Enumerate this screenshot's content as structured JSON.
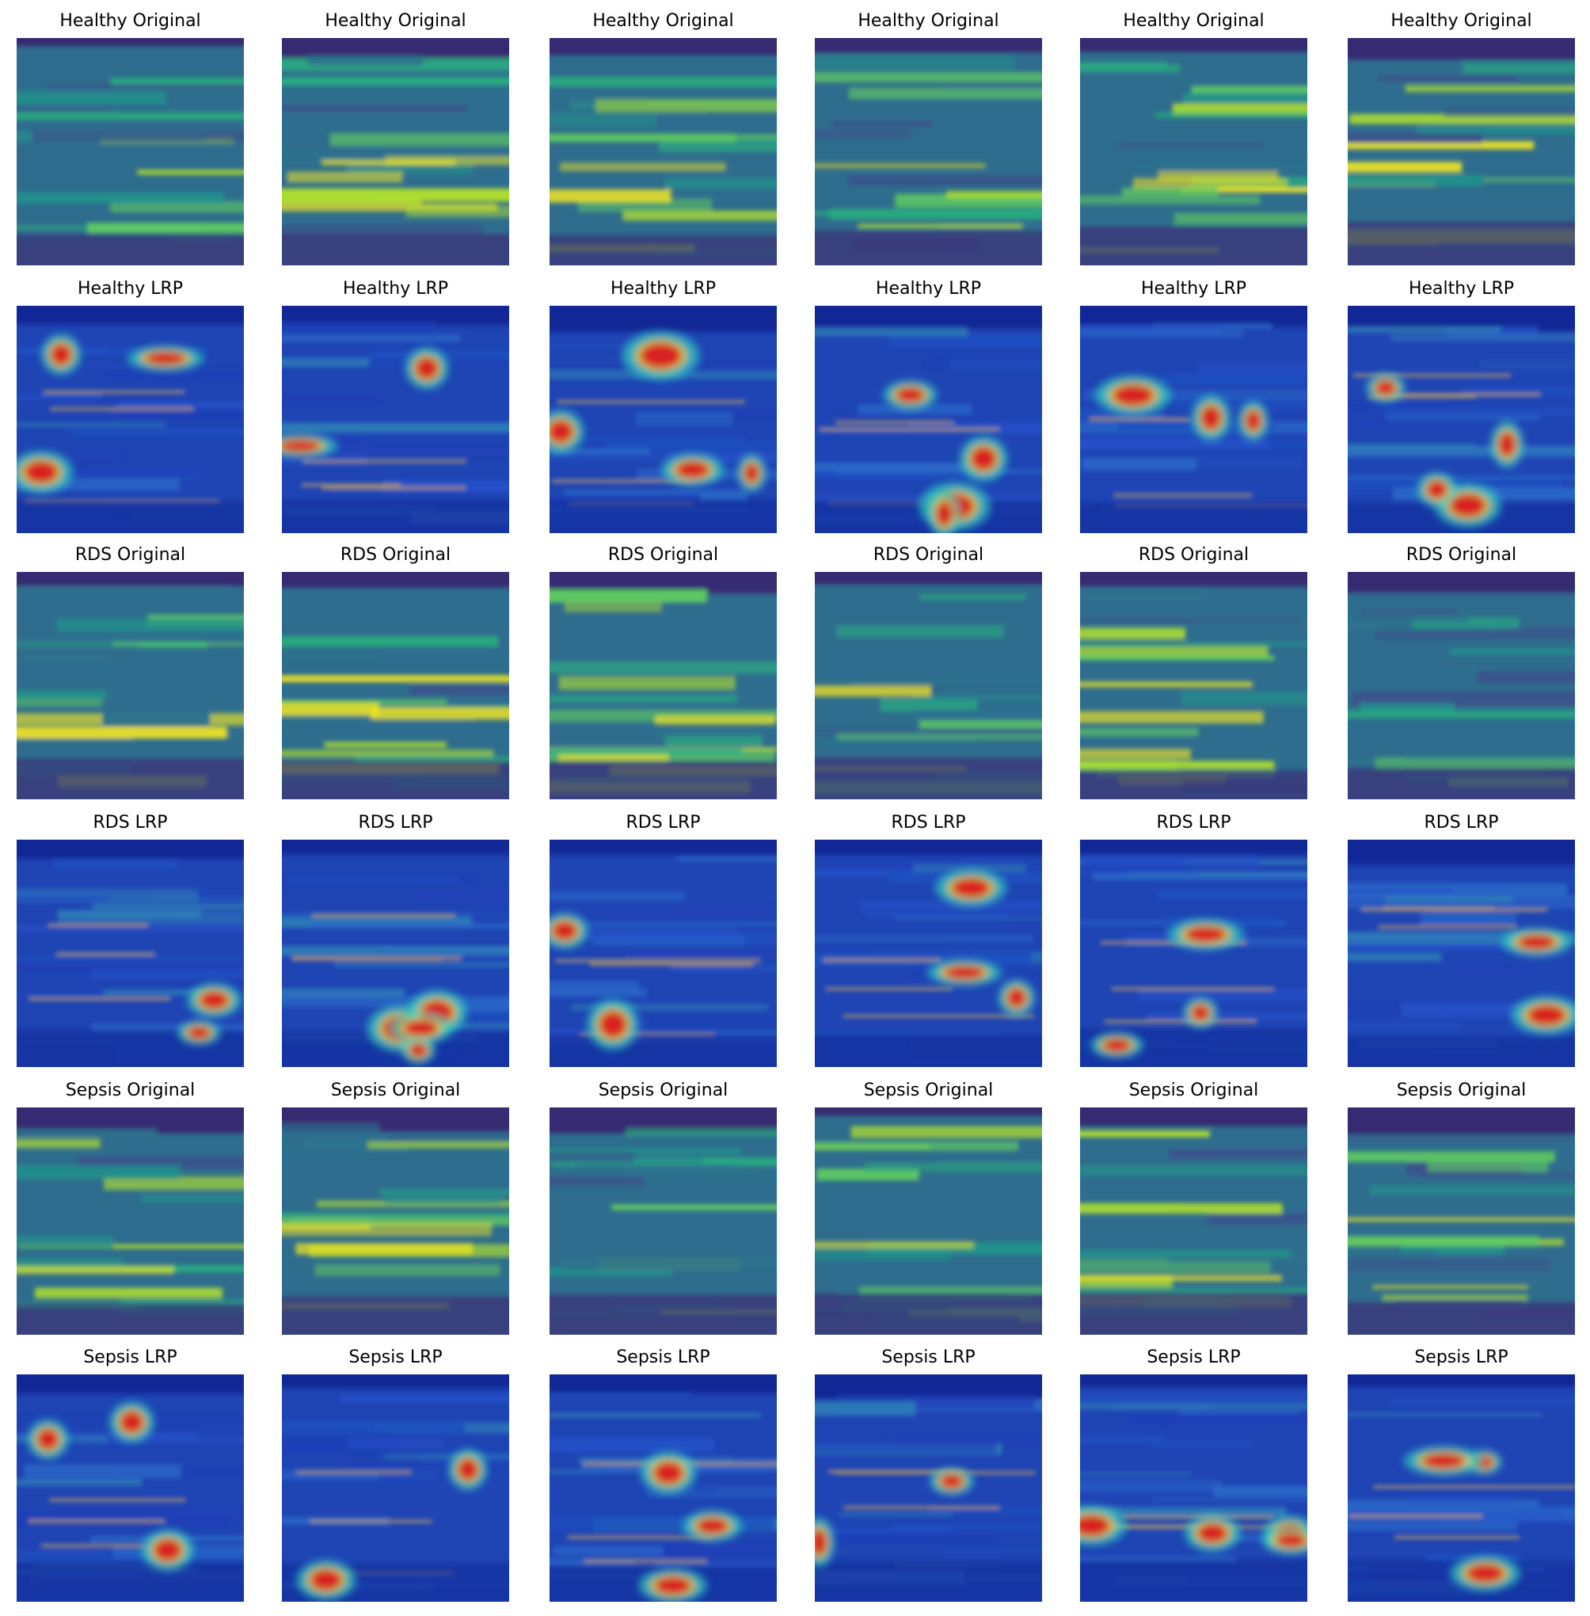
{
  "grid": {
    "rows": [
      [
        "Healthy Original",
        "Healthy Original",
        "Healthy Original",
        "Healthy Original",
        "Healthy Original",
        "Healthy Original"
      ],
      [
        "Healthy LRP",
        "Healthy LRP",
        "Healthy LRP",
        "Healthy LRP",
        "Healthy LRP",
        "Healthy LRP"
      ],
      [
        "RDS Original",
        "RDS Original",
        "RDS Original",
        "RDS Original",
        "RDS Original",
        "RDS Original"
      ],
      [
        "RDS LRP",
        "RDS LRP",
        "RDS LRP",
        "RDS LRP",
        "RDS LRP",
        "RDS LRP"
      ],
      [
        "Sepsis Original",
        "Sepsis Original",
        "Sepsis Original",
        "Sepsis Original",
        "Sepsis Original",
        "Sepsis Original"
      ],
      [
        "Sepsis LRP",
        "Sepsis LRP",
        "Sepsis LRP",
        "Sepsis LRP",
        "Sepsis LRP",
        "Sepsis LRP"
      ]
    ]
  }
}
